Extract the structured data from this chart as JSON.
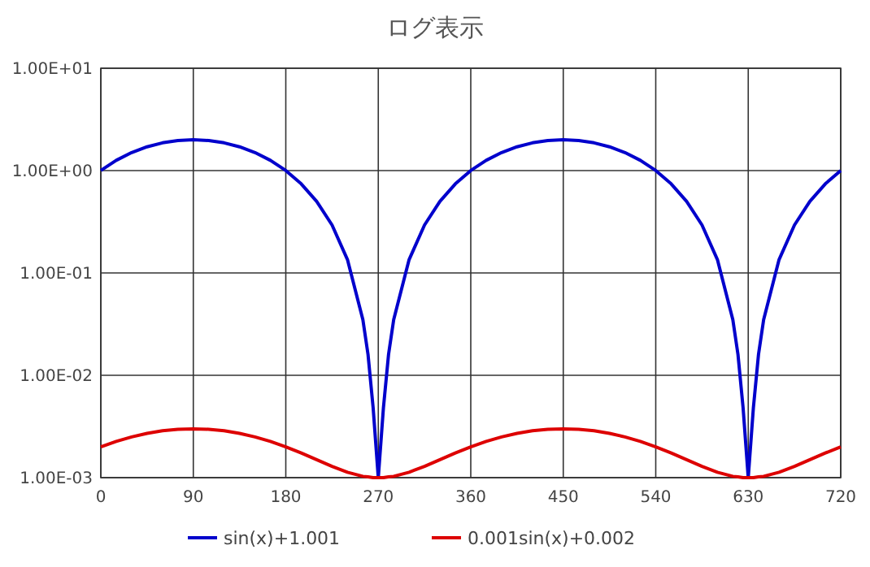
{
  "chart_data": {
    "type": "line",
    "title": "ログ表示",
    "log": "y",
    "grid": true,
    "legend": "bottom",
    "line_style": "solid",
    "x": [
      0,
      15,
      30,
      45,
      60,
      75,
      90,
      105,
      120,
      135,
      150,
      165,
      180,
      195,
      210,
      225,
      240,
      255,
      260,
      265,
      270,
      275,
      280,
      285,
      300,
      315,
      330,
      345,
      360,
      375,
      390,
      405,
      420,
      435,
      450,
      465,
      480,
      495,
      510,
      525,
      540,
      555,
      570,
      585,
      600,
      615,
      620,
      625,
      630,
      635,
      640,
      645,
      660,
      675,
      690,
      705,
      720
    ],
    "xlim": [
      0,
      720
    ],
    "xticks": [
      0,
      90,
      180,
      270,
      360,
      450,
      540,
      630,
      720
    ],
    "ylim": [
      0.001,
      10
    ],
    "yticks": [
      {
        "value": 0.001,
        "label": "1.00E-03"
      },
      {
        "value": 0.01,
        "label": "1.00E-02"
      },
      {
        "value": 0.1,
        "label": "1.00E-01"
      },
      {
        "value": 1,
        "label": "1.00E+00"
      },
      {
        "value": 10,
        "label": "1.00E+01"
      }
    ],
    "series": [
      {
        "name": "sin(x)+1.001",
        "color": "#0000cc",
        "values": [
          1.001,
          1.26,
          1.501,
          1.708,
          1.867,
          1.967,
          2.001,
          1.967,
          1.867,
          1.708,
          1.501,
          1.26,
          1.001,
          0.742,
          0.501,
          0.294,
          0.135,
          0.035,
          0.016,
          0.0048,
          0.001,
          0.0048,
          0.016,
          0.035,
          0.135,
          0.294,
          0.501,
          0.742,
          1.001,
          1.26,
          1.501,
          1.708,
          1.867,
          1.967,
          2.001,
          1.967,
          1.867,
          1.708,
          1.501,
          1.26,
          1.001,
          0.742,
          0.501,
          0.294,
          0.135,
          0.035,
          0.016,
          0.0048,
          0.001,
          0.0048,
          0.016,
          0.035,
          0.135,
          0.294,
          0.501,
          0.742,
          1.001
        ]
      },
      {
        "name": "0.001sin(x)+0.002",
        "color": "#dd0000",
        "values": [
          0.002,
          0.00226,
          0.0025,
          0.00271,
          0.00287,
          0.00297,
          0.003,
          0.00297,
          0.00287,
          0.00271,
          0.0025,
          0.00226,
          0.002,
          0.00174,
          0.0015,
          0.00129,
          0.00113,
          0.00103,
          0.00102,
          0.001,
          0.001,
          0.001,
          0.00102,
          0.00103,
          0.00113,
          0.00129,
          0.0015,
          0.00174,
          0.002,
          0.00226,
          0.0025,
          0.00271,
          0.00287,
          0.00297,
          0.003,
          0.00297,
          0.00287,
          0.00271,
          0.0025,
          0.00226,
          0.002,
          0.00174,
          0.0015,
          0.00129,
          0.00113,
          0.00103,
          0.00102,
          0.001,
          0.001,
          0.001,
          0.00102,
          0.00103,
          0.00113,
          0.00129,
          0.0015,
          0.00174,
          0.002
        ]
      }
    ]
  }
}
